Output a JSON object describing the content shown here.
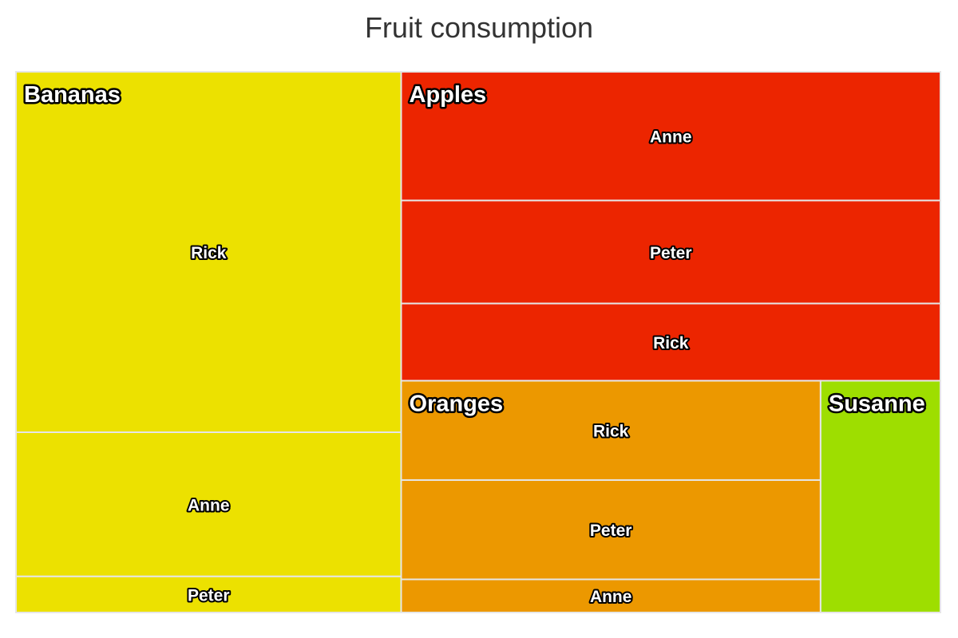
{
  "chart_data": {
    "type": "treemap",
    "title": "Fruit consumption",
    "layout": "stripes",
    "groups": [
      {
        "name": "Bananas",
        "color": "#ECE100",
        "children": [
          {
            "name": "Rick",
            "value": 10
          },
          {
            "name": "Anne",
            "value": 4
          },
          {
            "name": "Peter",
            "value": 1
          }
        ]
      },
      {
        "name": "Apples",
        "color": "#EC2500",
        "children": [
          {
            "name": "Anne",
            "value": 5
          },
          {
            "name": "Peter",
            "value": 4
          },
          {
            "name": "Rick",
            "value": 3
          }
        ]
      },
      {
        "name": "Oranges",
        "color": "#EC9800",
        "children": [
          {
            "name": "Rick",
            "value": 3
          },
          {
            "name": "Peter",
            "value": 3
          },
          {
            "name": "Anne",
            "value": 1
          }
        ]
      },
      {
        "name": "Susanne",
        "color": "#9EDE00",
        "children": [
          {
            "name": "Susanne",
            "value": 2,
            "label": ""
          }
        ]
      }
    ]
  }
}
